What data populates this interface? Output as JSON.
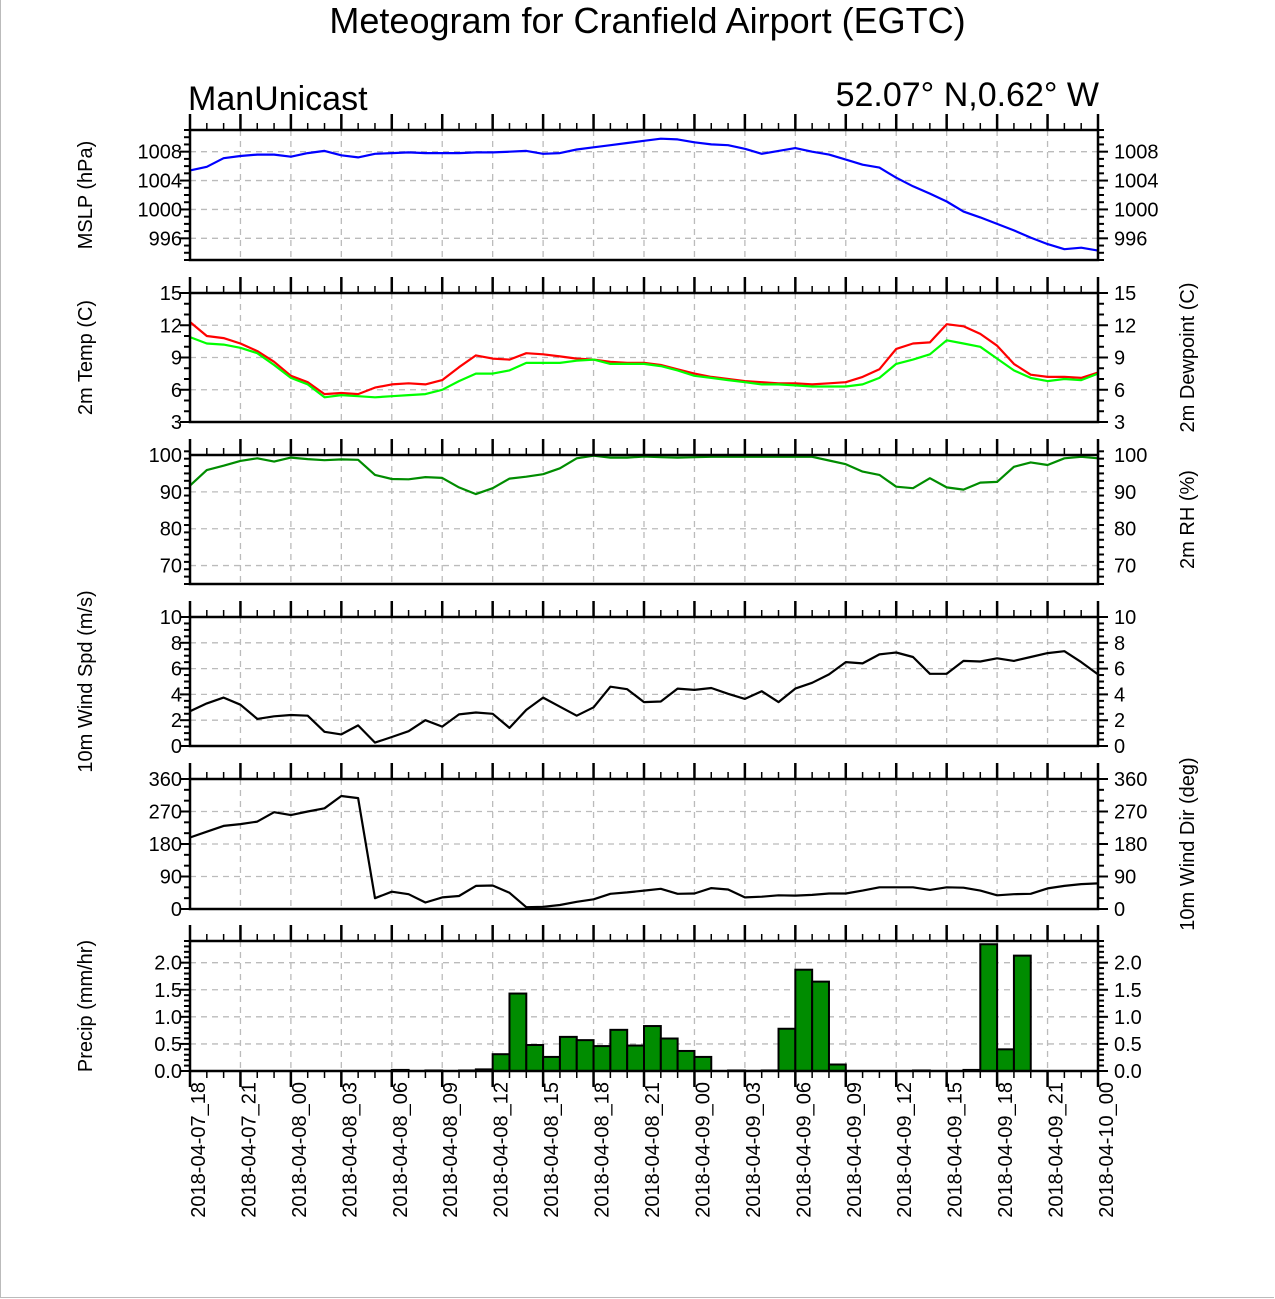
{
  "chart_data": {
    "type": "line",
    "title": "Meteogram for Cranfield Airport (EGTC)",
    "subtitle_left": "ManUnicast",
    "subtitle_right": "52.07° N,0.62° W",
    "x_unit": "hours since 2018-04-07_18",
    "x_range": [
      0,
      54
    ],
    "x_major_step": 3,
    "x_labels": [
      "2018-04-07_18",
      "2018-04-07_21",
      "2018-04-08_00",
      "2018-04-08_03",
      "2018-04-08_06",
      "2018-04-08_09",
      "2018-04-08_12",
      "2018-04-08_15",
      "2018-04-08_18",
      "2018-04-08_21",
      "2018-04-09_00",
      "2018-04-09_03",
      "2018-04-09_06",
      "2018-04-09_09",
      "2018-04-09_12",
      "2018-04-09_15",
      "2018-04-09_18",
      "2018-04-09_21",
      "2018-04-10_00"
    ],
    "grid": true,
    "panels": [
      {
        "id": "mslp",
        "type": "line",
        "ylabel_left": "MSLP (hPa)",
        "ylabel_right": "",
        "ylim": [
          993,
          1011
        ],
        "yticks": [
          996,
          1000,
          1004,
          1008
        ],
        "ytick_labels": [
          "996",
          "1000",
          "1004",
          "1008"
        ],
        "yminor_step": 1,
        "series": [
          {
            "name": "MSLP",
            "color": "#0000ff",
            "values": [
              1005.4,
              1005.9,
              1007.1,
              1007.4,
              1007.6,
              1007.6,
              1007.3,
              1007.8,
              1008.1,
              1007.5,
              1007.2,
              1007.7,
              1007.8,
              1007.9,
              1007.8,
              1007.8,
              1007.8,
              1007.9,
              1007.9,
              1008.0,
              1008.1,
              1007.7,
              1007.8,
              1008.3,
              1008.6,
              1008.9,
              1009.2,
              1009.5,
              1009.8,
              1009.7,
              1009.3,
              1009.0,
              1008.9,
              1008.4,
              1007.7,
              1008.1,
              1008.5,
              1008.0,
              1007.6,
              1006.9,
              1006.2,
              1005.8,
              1004.4,
              1003.2,
              1002.2,
              1001.1,
              999.7,
              998.9,
              998.0,
              997.1,
              996.1,
              995.2,
              994.5,
              994.7,
              994.3
            ]
          }
        ]
      },
      {
        "id": "temp",
        "type": "line",
        "ylabel_left": "2m Temp (C)",
        "ylabel_right": "2m Dewpoint (C)",
        "ylim": [
          3,
          15
        ],
        "yticks": [
          3,
          6,
          9,
          12,
          15
        ],
        "ytick_labels": [
          "3",
          "6",
          "9",
          "12",
          "15"
        ],
        "yminor_step": 1,
        "series": [
          {
            "name": "2m Temp",
            "color": "#ff0000",
            "values": [
              12.3,
              11.0,
              10.8,
              10.3,
              9.6,
              8.6,
              7.3,
              6.7,
              5.6,
              5.7,
              5.6,
              6.2,
              6.5,
              6.6,
              6.5,
              6.9,
              8.1,
              9.2,
              8.9,
              8.8,
              9.4,
              9.3,
              9.1,
              8.9,
              8.8,
              8.6,
              8.5,
              8.5,
              8.3,
              7.9,
              7.5,
              7.2,
              7.0,
              6.8,
              6.7,
              6.6,
              6.6,
              6.5,
              6.6,
              6.7,
              7.2,
              7.9,
              9.8,
              10.3,
              10.4,
              12.1,
              11.9,
              11.2,
              10.1,
              8.4,
              7.4,
              7.2,
              7.2,
              7.1,
              7.6
            ]
          },
          {
            "name": "2m Dewpoint",
            "color": "#00ff00",
            "values": [
              10.9,
              10.3,
              10.2,
              9.9,
              9.4,
              8.3,
              7.1,
              6.5,
              5.3,
              5.5,
              5.4,
              5.3,
              5.4,
              5.5,
              5.6,
              6.0,
              6.8,
              7.5,
              7.5,
              7.8,
              8.5,
              8.5,
              8.5,
              8.7,
              8.8,
              8.4,
              8.4,
              8.4,
              8.2,
              7.8,
              7.3,
              7.1,
              6.9,
              6.7,
              6.5,
              6.5,
              6.4,
              6.3,
              6.3,
              6.3,
              6.5,
              7.1,
              8.4,
              8.8,
              9.3,
              10.6,
              10.3,
              10.0,
              8.9,
              7.8,
              7.1,
              6.8,
              7.0,
              6.9,
              7.5
            ]
          }
        ]
      },
      {
        "id": "rh",
        "type": "line",
        "ylabel_left": "",
        "ylabel_right": "2m RH (%)",
        "ylim": [
          65,
          100
        ],
        "yticks": [
          70,
          80,
          90,
          100
        ],
        "ytick_labels": [
          "70",
          "80",
          "90",
          "100"
        ],
        "yminor_step": 2,
        "series": [
          {
            "name": "2m RH",
            "color": "#008c00",
            "values": [
              91.7,
              95.9,
              97.1,
              98.4,
              99.1,
              98.2,
              99.3,
              98.9,
              98.6,
              98.8,
              98.7,
              94.6,
              93.5,
              93.4,
              94.0,
              93.8,
              91.2,
              89.4,
              91.0,
              93.6,
              94.1,
              94.8,
              96.4,
              99.1,
              99.8,
              99.3,
              99.3,
              99.6,
              99.4,
              99.3,
              99.4,
              99.5,
              99.5,
              99.5,
              99.5,
              99.5,
              99.5,
              99.5,
              98.5,
              97.5,
              95.5,
              94.6,
              91.4,
              91.0,
              93.7,
              91.2,
              90.6,
              92.5,
              92.7,
              96.8,
              98.0,
              97.3,
              99.1,
              99.5,
              99.1
            ]
          }
        ]
      },
      {
        "id": "wspd",
        "type": "line",
        "ylabel_left": "10m Wind Spd (m/s)",
        "ylabel_right": "",
        "ylim": [
          0,
          10
        ],
        "yticks": [
          0,
          2,
          4,
          6,
          8,
          10
        ],
        "ytick_labels": [
          "0",
          "2",
          "4",
          "6",
          "8",
          "10"
        ],
        "yminor_step": 0.5,
        "series": [
          {
            "name": "10m Wind Spd",
            "color": "#000000",
            "values": [
              2.7,
              3.3,
              3.75,
              3.2,
              2.1,
              2.3,
              2.4,
              2.35,
              1.1,
              0.9,
              1.6,
              0.26,
              0.7,
              1.15,
              2.0,
              1.5,
              2.45,
              2.6,
              2.5,
              1.4,
              2.8,
              3.75,
              3.05,
              2.35,
              3.0,
              4.6,
              4.4,
              3.4,
              3.45,
              4.45,
              4.35,
              4.5,
              4.05,
              3.65,
              4.25,
              3.4,
              4.45,
              4.9,
              5.55,
              6.5,
              6.4,
              7.1,
              7.25,
              6.9,
              5.6,
              5.6,
              6.6,
              6.55,
              6.8,
              6.6,
              6.9,
              7.2,
              7.35,
              6.5,
              5.55
            ]
          }
        ]
      },
      {
        "id": "wdir",
        "type": "line",
        "ylabel_left": "",
        "ylabel_right": "10m Wind Dir (deg)",
        "ylim": [
          0,
          360
        ],
        "yticks": [
          0,
          90,
          180,
          270,
          360
        ],
        "ytick_labels": [
          "0",
          "90",
          "180",
          "270",
          "360"
        ],
        "yminor_step": 30,
        "series": [
          {
            "name": "10m Wind Dir",
            "color": "#000000",
            "values": [
              198,
              214,
              230,
              235,
              242,
              268,
              260,
              270,
              279,
              313,
              307,
              30,
              48,
              41,
              18,
              32,
              36,
              64,
              65,
              45,
              5,
              6,
              11,
              20,
              27,
              42,
              46,
              51,
              56,
              42,
              43,
              58,
              54,
              32,
              34,
              38,
              37,
              39,
              43,
              43,
              51,
              60,
              60,
              60,
              53,
              60,
              59,
              51,
              38,
              41,
              42,
              57,
              64,
              69,
              71
            ]
          }
        ]
      },
      {
        "id": "precip",
        "type": "bar",
        "ylabel_left": "Precip (mm/hr)",
        "ylabel_right": "",
        "ylim": [
          0,
          2.4
        ],
        "yticks": [
          0,
          0.5,
          1.0,
          1.5,
          2.0
        ],
        "ytick_labels": [
          "0.0",
          "0.5",
          "1.0",
          "1.5",
          "2.0"
        ],
        "yminor_step": 0.1,
        "series": [
          {
            "name": "Precip",
            "color": "#008c00",
            "values": [
              0,
              0,
              0,
              0,
              0,
              0,
              0,
              0,
              0,
              0,
              0,
              0,
              0.02,
              0,
              0.01,
              0,
              0.01,
              0.03,
              0.31,
              1.43,
              0.48,
              0.26,
              0.63,
              0.57,
              0.46,
              0.76,
              0.47,
              0.83,
              0.6,
              0.37,
              0.26,
              0,
              0.01,
              0,
              0.01,
              0.78,
              1.87,
              1.65,
              0.12,
              0,
              0,
              0,
              0,
              0.01,
              0,
              0,
              0.02,
              2.34,
              0.4,
              2.13,
              0,
              0,
              0,
              0
            ]
          }
        ]
      }
    ]
  }
}
